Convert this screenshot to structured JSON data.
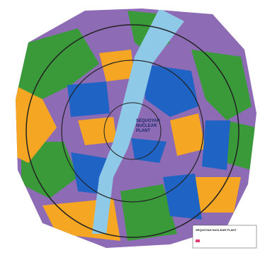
{
  "map": {
    "center_label": [
      "SEQUOYAH",
      "NUCLEAR",
      "PLANT"
    ],
    "legend_title": "SEQUOYAH NUCLEAR PLANT"
  }
}
